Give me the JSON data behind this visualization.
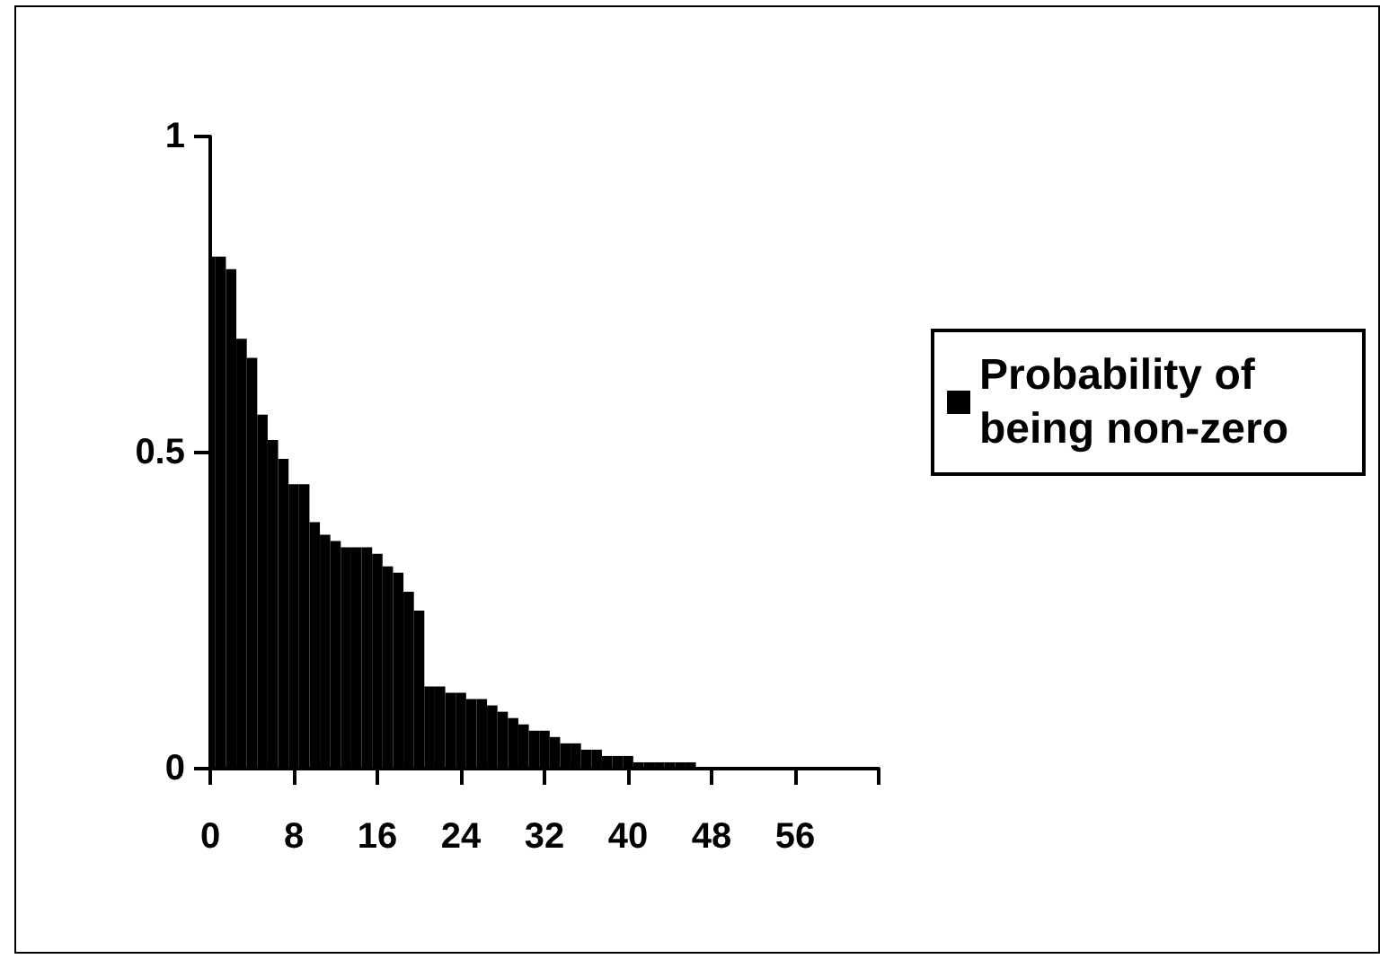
{
  "chart_data": {
    "type": "histogram",
    "bins": [
      0,
      0.5,
      1.5,
      2.5,
      3.5,
      4.5,
      5.5,
      6.5,
      7.5,
      8.5,
      9.5,
      10.5,
      11.5,
      12.5,
      13.5,
      14.5,
      15.5,
      16.5,
      17.5,
      18.5,
      19.5,
      20.5,
      21.5,
      22.5,
      23.5,
      24.5,
      25.5,
      26.5,
      27.5,
      28.5,
      29.5,
      30.5,
      31.5,
      32.5,
      33.5,
      34.5,
      35.5,
      36.5,
      37.5,
      38.5,
      39.5,
      40.5,
      41.5,
      42.5,
      43.5,
      44.5,
      45.5,
      46.5
    ],
    "series": [
      {
        "name": "Probability of being non-zero",
        "color": "#000000",
        "values": [
          0.81,
          0.81,
          0.79,
          0.68,
          0.65,
          0.56,
          0.52,
          0.49,
          0.45,
          0.45,
          0.39,
          0.37,
          0.36,
          0.35,
          0.35,
          0.35,
          0.34,
          0.32,
          0.31,
          0.28,
          0.25,
          0.13,
          0.13,
          0.12,
          0.12,
          0.11,
          0.11,
          0.1,
          0.09,
          0.08,
          0.07,
          0.06,
          0.06,
          0.05,
          0.04,
          0.04,
          0.03,
          0.03,
          0.02,
          0.02,
          0.02,
          0.01,
          0.01,
          0.01,
          0.01,
          0.01,
          0.01
        ]
      }
    ],
    "xlim": [
      0,
      64
    ],
    "xticks": [
      0,
      8,
      16,
      24,
      32,
      40,
      48,
      56,
      {
        "value": 64,
        "label": null
      }
    ],
    "ylim": [
      0,
      1
    ],
    "yticks": [
      0,
      0.5,
      1
    ],
    "grid": false,
    "legend": "right"
  }
}
